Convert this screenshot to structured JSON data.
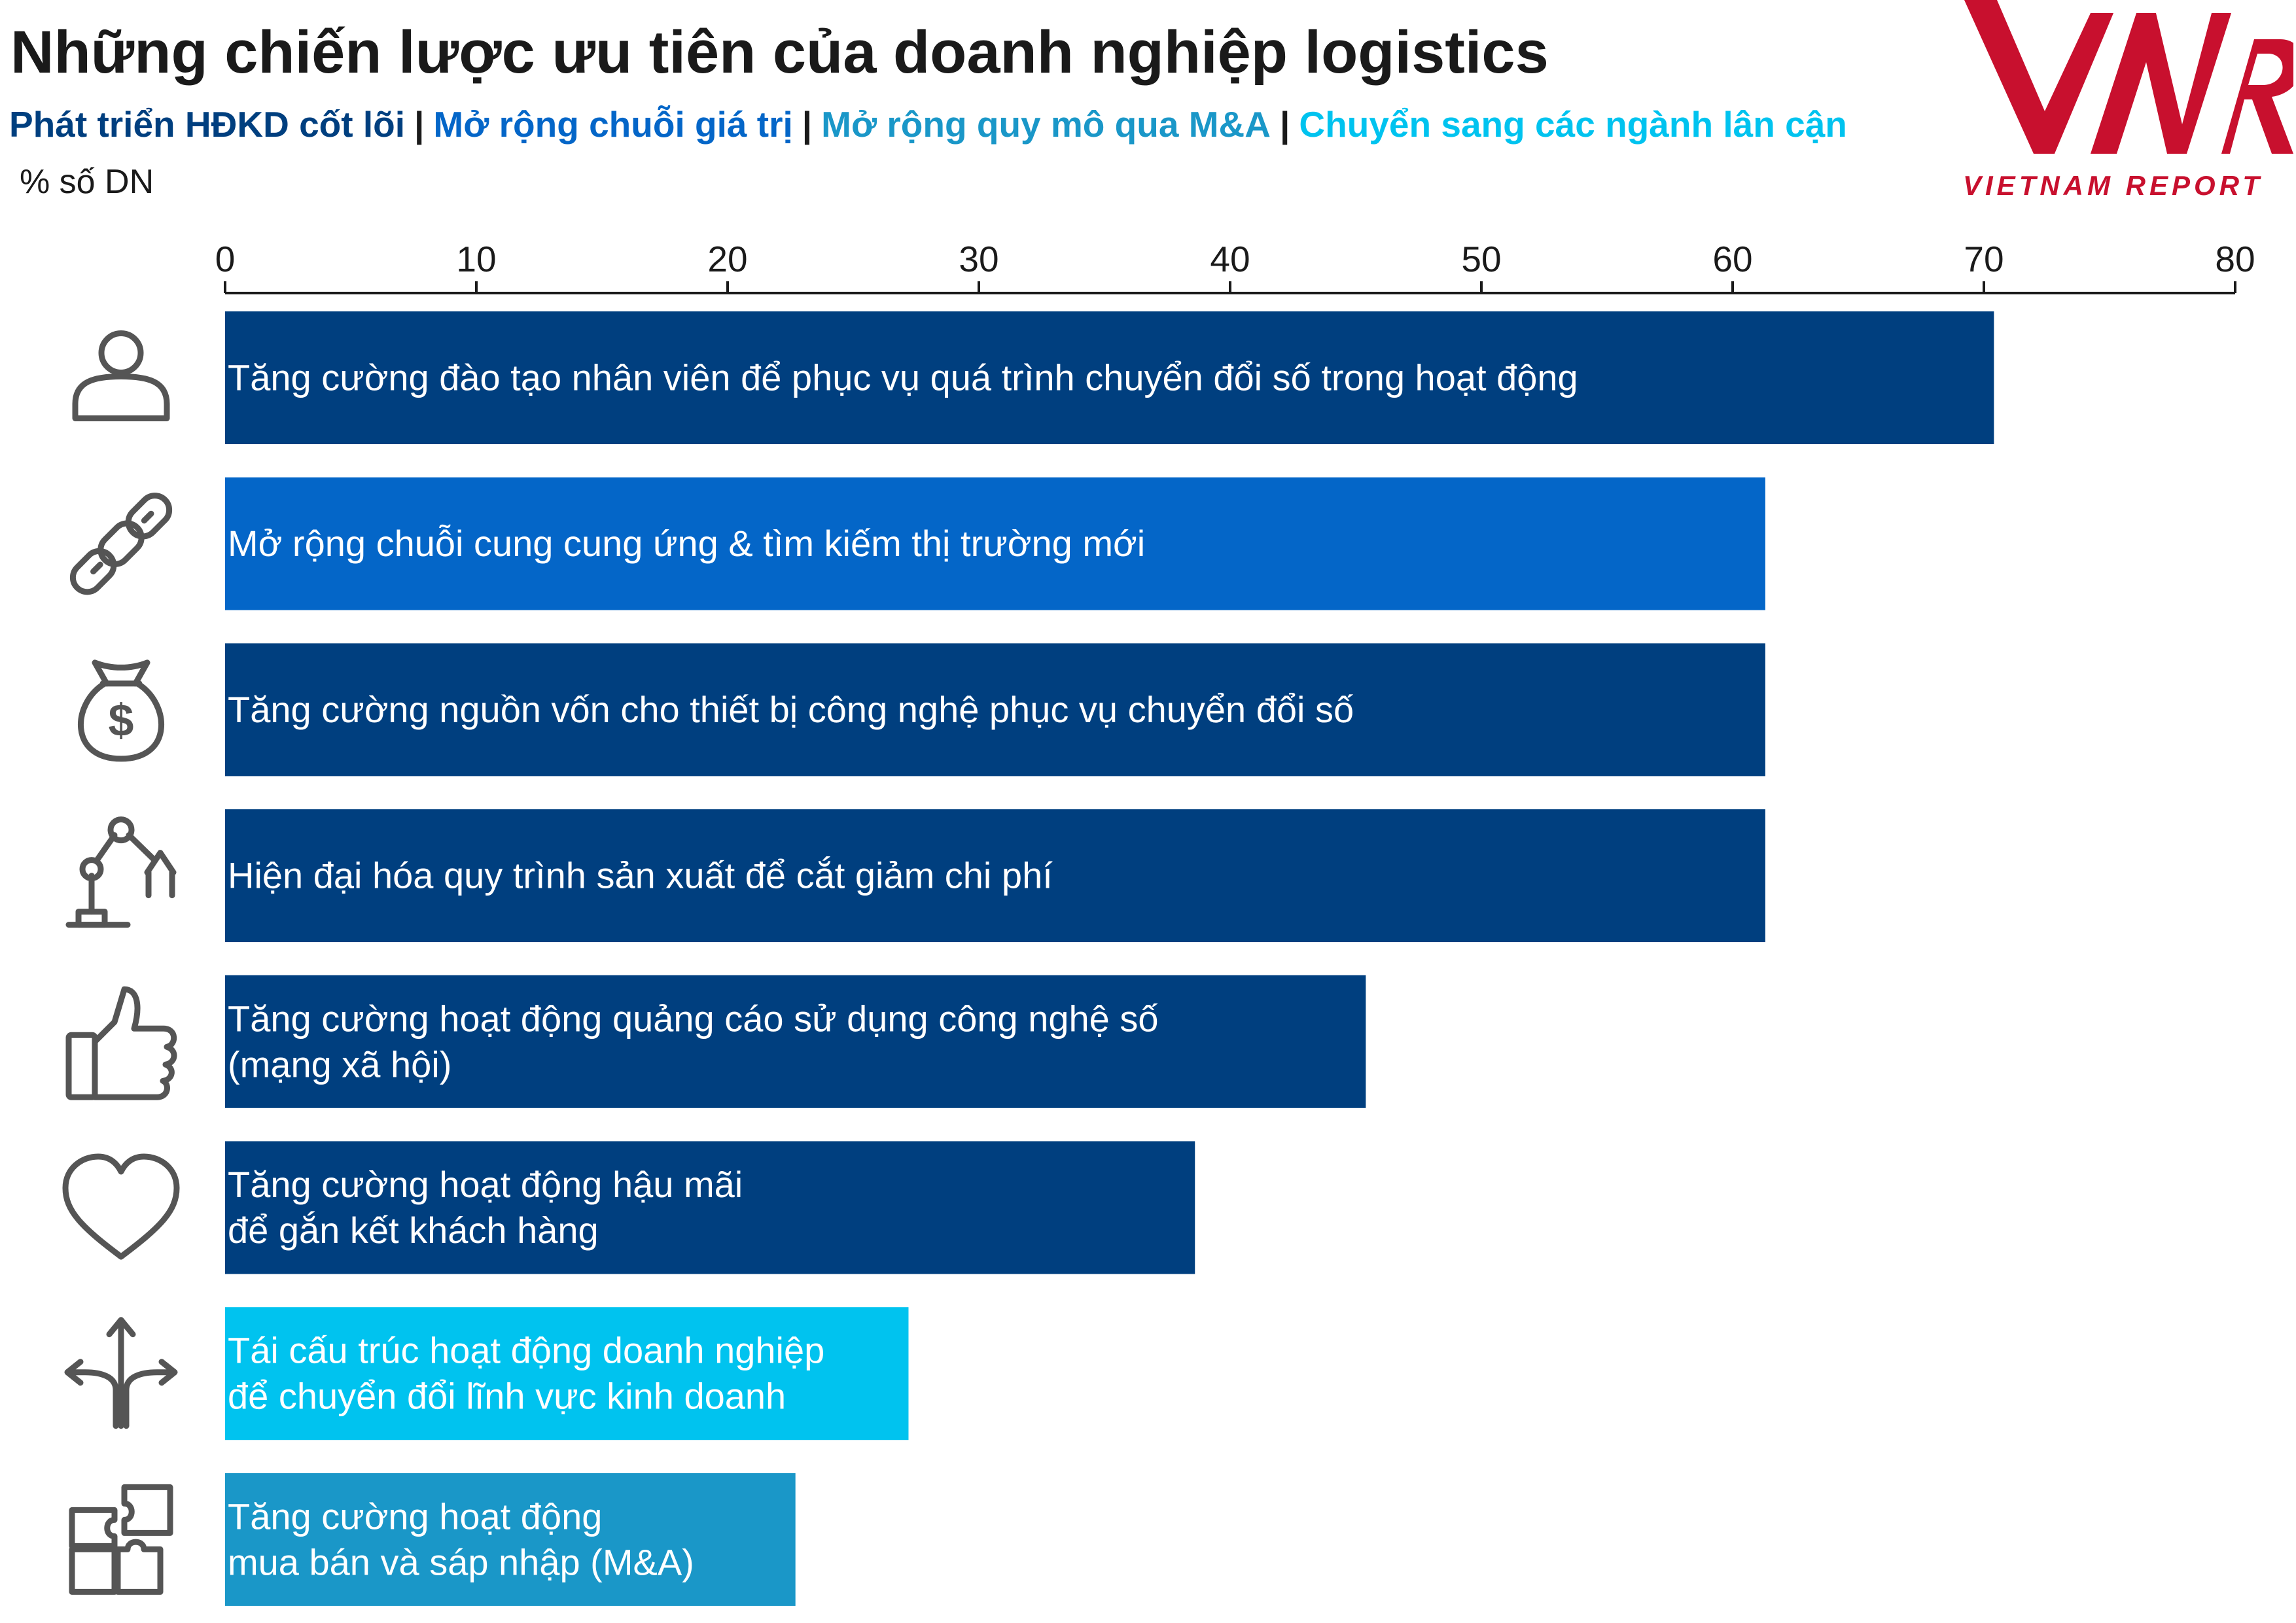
{
  "title": "Những chiến lược ưu tiên của doanh nghiệp logistics",
  "legend": [
    {
      "label": "Phát triển HĐKD cốt lõi",
      "color": "#003f7f"
    },
    {
      "label": "Mở rộng chuỗi giá trị",
      "color": "#0466c8"
    },
    {
      "label": "Mở rộng quy mô qua M&A",
      "color": "#1a97c8"
    },
    {
      "label": "Chuyển sang các ngành lân cận",
      "color": "#00c3ef"
    }
  ],
  "legend_separator": "|",
  "unit_label": "% số DN",
  "logo": {
    "mark": "VNR",
    "text": "VIETNAM REPORT",
    "color": "#c8102e"
  },
  "chart_data": {
    "type": "bar",
    "orientation": "horizontal",
    "title": "Những chiến lược ưu tiên của doanh nghiệp logistics",
    "xlabel": "% số DN",
    "xlim": [
      0,
      80
    ],
    "xticks": [
      0,
      10,
      20,
      30,
      40,
      50,
      60,
      70,
      80
    ],
    "grid": false,
    "categories": [
      [
        "Tăng cường đào tạo nhân viên để phục vụ quá trình chuyển đổi số trong hoạt động"
      ],
      [
        "Mở rộng chuỗi cung cung ứng & tìm kiếm thị trường mới"
      ],
      [
        "Tăng cường nguồn vốn cho thiết bị công nghệ phục vụ chuyển đổi số"
      ],
      [
        "Hiện đại hóa quy trình sản xuất để cắt giảm chi phí"
      ],
      [
        "Tăng cường hoạt động quảng cáo sử dụng công nghệ số",
        "(mạng xã hội)"
      ],
      [
        "Tăng cường hoạt động hậu mãi",
        "để gắn kết khách hàng"
      ],
      [
        "Tái cấu trúc hoạt động doanh nghiệp",
        "để chuyển đổi lĩnh vực kinh doanh"
      ],
      [
        "Tăng cường hoạt động",
        "mua bán và sáp nhập (M&A)"
      ]
    ],
    "values": [
      70.4,
      61.3,
      61.3,
      61.3,
      45.4,
      38.6,
      27.2,
      22.7
    ],
    "bar_colors": [
      "#003f7f",
      "#0466c8",
      "#003f7f",
      "#003f7f",
      "#003f7f",
      "#003f7f",
      "#00c3ef",
      "#1a97c8"
    ],
    "icons": [
      "person-icon",
      "chain-link-icon",
      "money-bag-icon",
      "robot-arm-icon",
      "thumbs-up-icon",
      "heart-icon",
      "split-arrows-icon",
      "puzzle-icon"
    ]
  }
}
